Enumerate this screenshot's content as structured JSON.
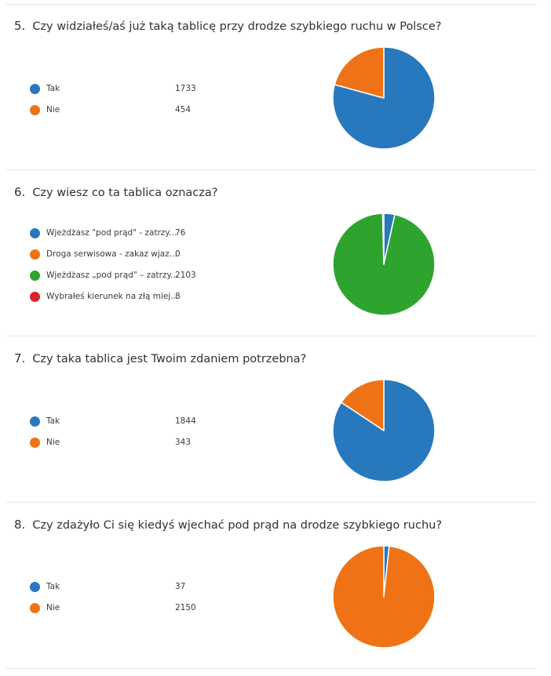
{
  "colors": {
    "blue": "#2878bd",
    "orange": "#ef7316",
    "green": "#2ea42e",
    "red": "#d8232a"
  },
  "chart_data": [
    {
      "type": "pie",
      "number": "5.",
      "title": "Czy widziałeś/aś już taką tablicę przy drodze szybkiego ruchu w Polsce?",
      "categories": [
        "Tak",
        "Nie"
      ],
      "values": [
        1733,
        454
      ],
      "colors": [
        "#2878bd",
        "#ef7316"
      ],
      "legend": "left"
    },
    {
      "type": "pie",
      "number": "6.",
      "title": "Czy wiesz co ta tablica oznacza?",
      "categories": [
        "Wjeżdżasz \"pod prąd\" - zatrzy...",
        "Droga serwisowa - zakaz wjaz...",
        "Wjeżdżasz „pod prąd\" – zatrzy...",
        "Wybrałeś kierunek na złą miej..."
      ],
      "values": [
        76,
        0,
        2103,
        8
      ],
      "colors": [
        "#2878bd",
        "#ef7316",
        "#2ea42e",
        "#d8232a"
      ],
      "legend": "left"
    },
    {
      "type": "pie",
      "number": "7.",
      "title": "Czy taka tablica jest Twoim zdaniem potrzebna?",
      "categories": [
        "Tak",
        "Nie"
      ],
      "values": [
        1844,
        343
      ],
      "colors": [
        "#2878bd",
        "#ef7316"
      ],
      "legend": "left"
    },
    {
      "type": "pie",
      "number": "8.",
      "title": "Czy zdażyło Ci się kiedyś wjechać pod prąd na drodze szybkiego ruchu?",
      "categories": [
        "Tak",
        "Nie"
      ],
      "values": [
        37,
        2150
      ],
      "colors": [
        "#2878bd",
        "#ef7316"
      ],
      "legend": "left"
    }
  ]
}
